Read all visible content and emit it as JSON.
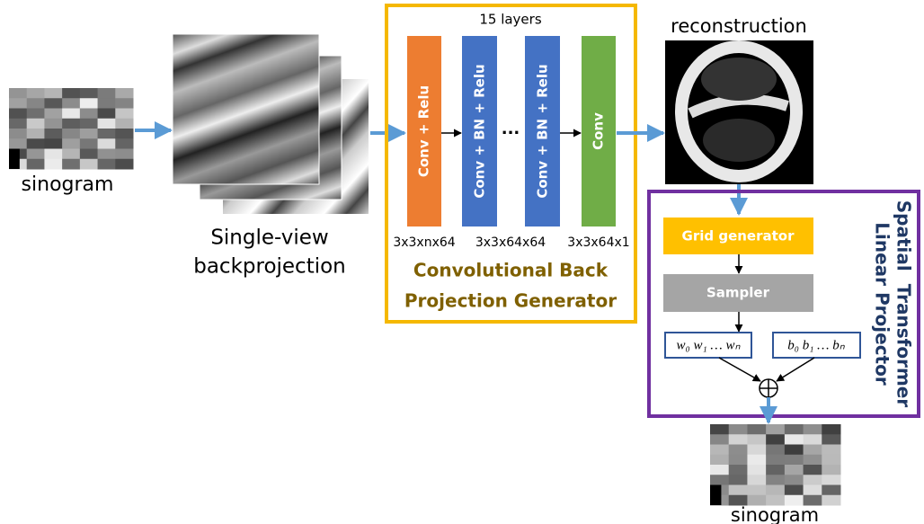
{
  "input": {
    "label": "sinogram"
  },
  "backprojection": {
    "label": [
      "Single-view",
      "backprojection"
    ]
  },
  "generator": {
    "layer_count": "15 layers",
    "blocks": [
      "Conv + Relu",
      "Conv + BN + Relu",
      "Conv + BN + Relu",
      "Conv"
    ],
    "ellipsis": "...",
    "kernels": [
      "3x3xnx64",
      "3x3x64x64",
      "3x3x64x1"
    ],
    "title": [
      "Convolutional Back",
      "Projection Generator"
    ]
  },
  "reconstruction": {
    "label": "reconstruction"
  },
  "projector": {
    "title": [
      "Spatial  Transformer",
      "Linear Projector"
    ],
    "grid_generator": "Grid generator",
    "sampler": "Sampler",
    "weights": "w₀ w₁ … wₙ",
    "biases": "b₀ b₁ … bₙ",
    "output_label": "sinogram"
  }
}
